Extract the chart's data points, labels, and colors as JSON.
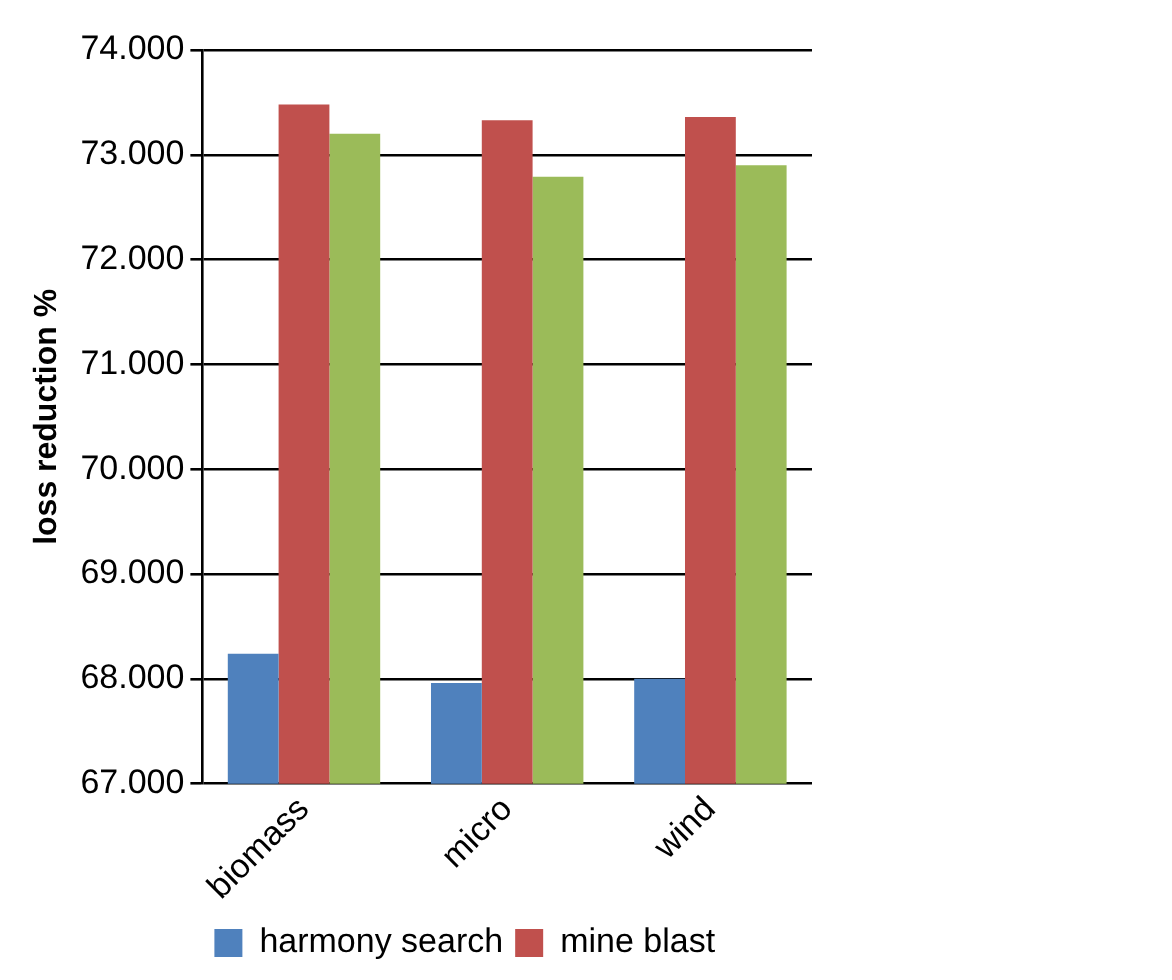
{
  "chart_data": {
    "type": "bar",
    "ylabel": "loss reduction %",
    "categories": [
      "biomass",
      "micro",
      "wind"
    ],
    "series": [
      {
        "name": "harmony search",
        "color": "#4f81bd",
        "values": [
          68.24,
          67.96,
          68.0
        ]
      },
      {
        "name": "mine blast",
        "color": "#c0504d",
        "values": [
          73.48,
          73.33,
          73.36
        ]
      },
      {
        "color": "#9bbb59",
        "values": [
          73.2,
          72.79,
          72.9
        ]
      }
    ],
    "ylim": [
      67,
      74
    ],
    "yticks": [
      {
        "value": 67,
        "label": "67.000"
      },
      {
        "value": 68,
        "label": "68.000"
      },
      {
        "value": 69,
        "label": "69.000"
      },
      {
        "value": 70,
        "label": "70.000"
      },
      {
        "value": 71,
        "label": "71.000"
      },
      {
        "value": 72,
        "label": "72.000"
      },
      {
        "value": 73,
        "label": "73.000"
      },
      {
        "value": 74,
        "label": "74.000"
      }
    ],
    "grid": "y",
    "legend": "bottom left"
  }
}
